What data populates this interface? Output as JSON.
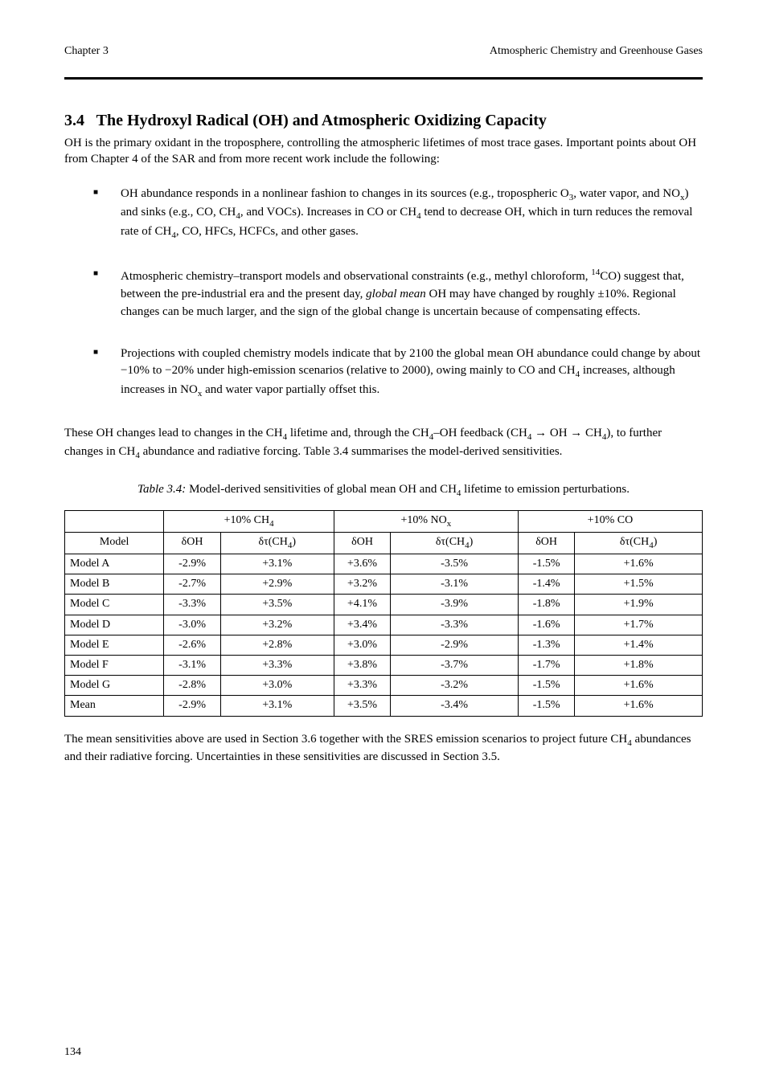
{
  "header": {
    "left": "Chapter 3",
    "right": "Atmospheric Chemistry and Greenhouse Gases"
  },
  "section": {
    "number": "3.4",
    "title": "The Hydroxyl Radical (OH) and Atmospheric Oxidizing Capacity"
  },
  "intro": "OH is the primary oxidant in the troposphere, controlling the atmospheric lifetimes of most trace gases. Important points about OH from Chapter 4 of the SAR and from more recent work include the following:",
  "bullets": [
    {
      "html": "OH abundance responds in a nonlinear fashion to changes in its sources (e.g., tropospheric O<sub>3</sub>, water vapor, and NO<sub>x</sub>) and sinks (e.g., CO, CH<sub>4</sub>, and VOCs). Increases in CO or CH<sub>4</sub> tend to decrease OH, which in turn reduces the removal rate of CH<sub>4</sub>, CO, HFCs, HCFCs, and other gases."
    },
    {
      "html": "Atmospheric chemistry–transport models and observational constraints (e.g., methyl chloroform, <sup>14</sup>CO) suggest that, between the pre-industrial era and the present day, <em>global mean</em> OH may have changed by roughly &plusmn;10%. Regional changes can be much larger, and the sign of the global change is uncertain because of compensating effects."
    },
    {
      "html": "Projections with coupled chemistry models indicate that by 2100 the global mean OH abundance could change by about &minus;10% to &minus;20% under high-emission scenarios (relative to 2000), owing mainly to CO and CH<sub>4</sub> increases, although increases in NO<sub>x</sub> and water vapor partially offset this."
    }
  ],
  "arrow_para": "These OH changes lead to changes in the CH<sub>4</sub> lifetime and, through the CH<sub>4</sub>&ndash;OH feedback (CH<sub>4</sub> &rarr; OH &rarr; CH<sub>4</sub>), to further changes in CH<sub>4</sub> abundance and radiative forcing. Table 3.4 summarises the model-derived sensitivities.",
  "table": {
    "caption_html": "<em>Table 3.4:</em> Model-derived sensitivities of global mean OH and CH<sub>4</sub> lifetime to emission perturbations.",
    "head_row1": [
      "",
      "+10% CH<sub>4</sub>",
      "+10% NO<sub>x</sub>",
      "+10% CO"
    ],
    "head_row2": [
      "Model",
      "&delta;OH",
      "&delta;&tau;(CH<sub>4</sub>)",
      "&delta;OH",
      "&delta;&tau;(CH<sub>4</sub>)",
      "&delta;OH",
      "&delta;&tau;(CH<sub>4</sub>)"
    ],
    "rows": [
      [
        "Model A",
        "-2.9%",
        "+3.1%",
        "+3.6%",
        "-3.5%",
        "-1.5%",
        "+1.6%"
      ],
      [
        "Model B",
        "-2.7%",
        "+2.9%",
        "+3.2%",
        "-3.1%",
        "-1.4%",
        "+1.5%"
      ],
      [
        "Model C",
        "-3.3%",
        "+3.5%",
        "+4.1%",
        "-3.9%",
        "-1.8%",
        "+1.9%"
      ],
      [
        "Model D",
        "-3.0%",
        "+3.2%",
        "+3.4%",
        "-3.3%",
        "-1.6%",
        "+1.7%"
      ],
      [
        "Model E",
        "-2.6%",
        "+2.8%",
        "+3.0%",
        "-2.9%",
        "-1.3%",
        "+1.4%"
      ],
      [
        "Model F",
        "-3.1%",
        "+3.3%",
        "+3.8%",
        "-3.7%",
        "-1.7%",
        "+1.8%"
      ],
      [
        "Model G",
        "-2.8%",
        "+3.0%",
        "+3.3%",
        "-3.2%",
        "-1.5%",
        "+1.6%"
      ],
      [
        "Mean",
        "-2.9%",
        "+3.1%",
        "+3.5%",
        "-3.4%",
        "-1.5%",
        "+1.6%"
      ]
    ],
    "col_widths_pct": [
      14,
      8,
      16,
      8,
      18,
      8,
      18
    ]
  },
  "after_table": "The mean sensitivities above are used in Section 3.6 together with the SRES emission scenarios to project future CH<sub>4</sub> abundances and their radiative forcing. Uncertainties in these sensitivities are discussed in Section 3.5.",
  "footer_page": "134"
}
